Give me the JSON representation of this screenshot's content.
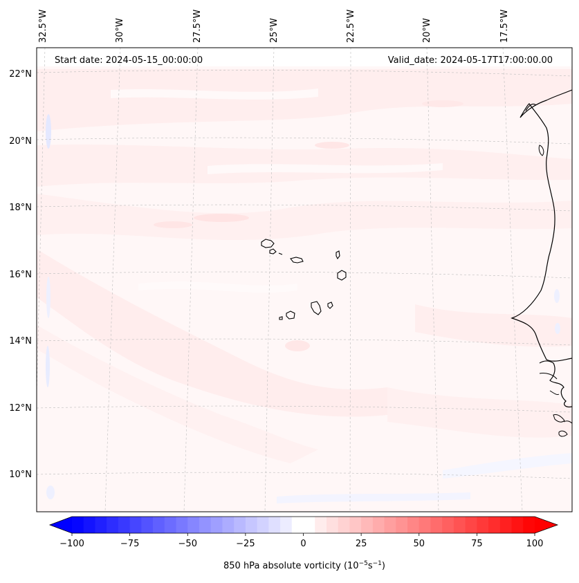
{
  "map": {
    "start_date_label": "Start date: 2024-05-15_00:00:00",
    "valid_date_label": "Valid_date: 2024-05-17T17:00:00.00",
    "lon_labels": [
      "32.5°W",
      "30°W",
      "27.5°W",
      "25°W",
      "22.5°W",
      "20°W",
      "17.5°W"
    ],
    "lat_labels": [
      "22°N",
      "20°N",
      "18°N",
      "16°N",
      "14°N",
      "12°N",
      "10°N"
    ]
  },
  "colorbar": {
    "title": "850 hPa absolute vorticity (10",
    "title_exp1": "−5",
    "title_mid": "s",
    "title_exp2": "−1",
    "title_end": ")",
    "tick_labels": [
      "−100",
      "−75",
      "−50",
      "−25",
      "0",
      "25",
      "50",
      "75",
      "100"
    ],
    "range": [
      -100,
      100
    ],
    "colors": {
      "negative": "#0000ff",
      "zero": "#ffffff",
      "positive": "#ff0000"
    }
  }
}
